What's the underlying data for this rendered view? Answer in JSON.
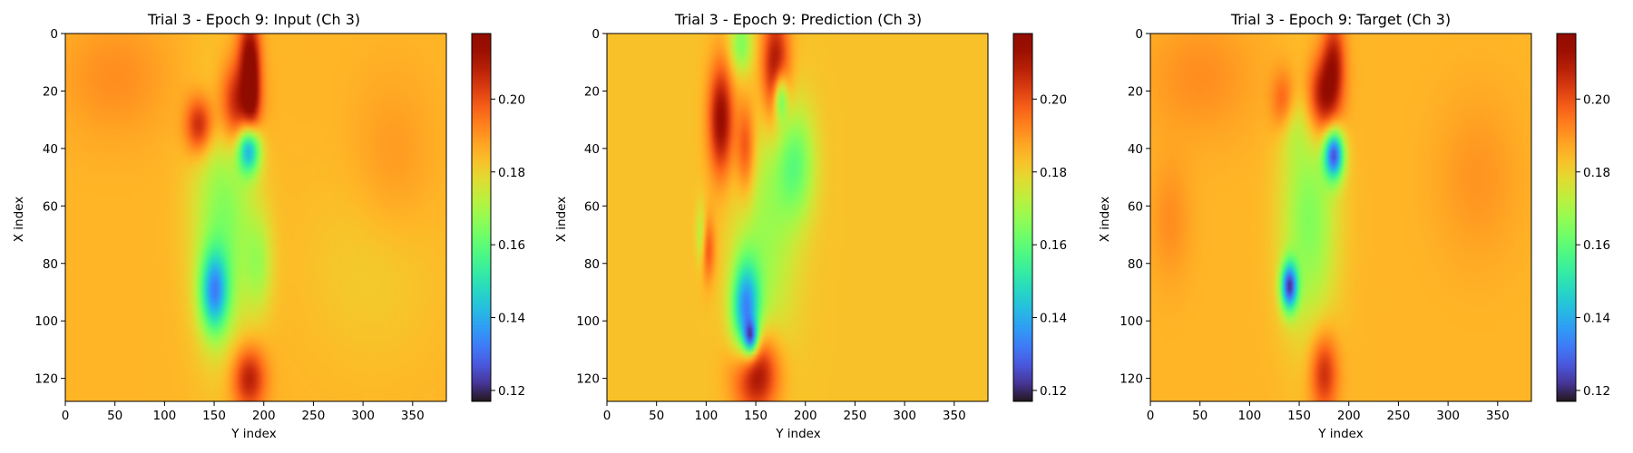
{
  "colormap": "turbo",
  "chart_data": [
    {
      "type": "heatmap",
      "title": "Trial 3 - Epoch 9: Input (Ch 3)",
      "xlabel": "Y index",
      "ylabel": "X index",
      "xlim": [
        0,
        384
      ],
      "ylim": [
        128,
        0
      ],
      "xticks": [
        0,
        50,
        100,
        150,
        200,
        250,
        300,
        350
      ],
      "yticks": [
        0,
        20,
        40,
        60,
        80,
        100,
        120
      ],
      "colorbar": {
        "range": [
          0.117,
          0.218
        ],
        "ticks": [
          0.12,
          0.14,
          0.16,
          0.18,
          0.2
        ],
        "tick_labels": [
          "0.12",
          "0.14",
          "0.16",
          "0.18",
          "0.20"
        ]
      },
      "background": 0.185,
      "features": [
        {
          "x": 175,
          "y": 25,
          "sx": 14,
          "sy": 11,
          "a": 0.03
        },
        {
          "x": 135,
          "y": 32,
          "sx": 10,
          "sy": 7,
          "a": 0.025
        },
        {
          "x": 185,
          "y": 5,
          "sx": 8,
          "sy": 9,
          "a": 0.02
        },
        {
          "x": 188,
          "y": 20,
          "sx": 6,
          "sy": 12,
          "a": 0.02
        },
        {
          "x": 185,
          "y": 120,
          "sx": 12,
          "sy": 8,
          "a": 0.025
        },
        {
          "x": 185,
          "y": 40,
          "sx": 8,
          "sy": 6,
          "a": -0.048
        },
        {
          "x": 150,
          "y": 90,
          "sx": 10,
          "sy": 10,
          "a": -0.04
        },
        {
          "x": 160,
          "y": 65,
          "sx": 22,
          "sy": 30,
          "a": -0.02
        },
        {
          "x": 195,
          "y": 80,
          "sx": 10,
          "sy": 12,
          "a": -0.012
        },
        {
          "x": 50,
          "y": 15,
          "sx": 40,
          "sy": 15,
          "a": 0.006
        },
        {
          "x": 330,
          "y": 45,
          "sx": 30,
          "sy": 20,
          "a": 0.005
        },
        {
          "x": 310,
          "y": 80,
          "sx": 50,
          "sy": 25,
          "a": -0.004
        }
      ]
    },
    {
      "type": "heatmap",
      "title": "Trial 3 - Epoch 9: Prediction (Ch 3)",
      "xlabel": "Y index",
      "ylabel": "X index",
      "xlim": [
        0,
        384
      ],
      "ylim": [
        128,
        0
      ],
      "xticks": [
        0,
        50,
        100,
        150,
        200,
        250,
        300,
        350
      ],
      "yticks": [
        0,
        20,
        40,
        60,
        80,
        100,
        120
      ],
      "colorbar": {
        "range": [
          0.117,
          0.218
        ],
        "ticks": [
          0.12,
          0.14,
          0.16,
          0.18,
          0.2
        ],
        "tick_labels": [
          "0.12",
          "0.14",
          "0.16",
          "0.18",
          "0.20"
        ]
      },
      "background": 0.183,
      "features": [
        {
          "x": 170,
          "y": 12,
          "sx": 10,
          "sy": 14,
          "a": 0.03
        },
        {
          "x": 115,
          "y": 30,
          "sx": 9,
          "sy": 14,
          "a": 0.032
        },
        {
          "x": 140,
          "y": 40,
          "sx": 7,
          "sy": 12,
          "a": 0.02
        },
        {
          "x": 150,
          "y": 118,
          "sx": 16,
          "sy": 10,
          "a": 0.034
        },
        {
          "x": 100,
          "y": 75,
          "sx": 6,
          "sy": 8,
          "a": 0.02
        },
        {
          "x": 140,
          "y": 96,
          "sx": 10,
          "sy": 12,
          "a": -0.045
        },
        {
          "x": 145,
          "y": 106,
          "sx": 5,
          "sy": 4,
          "a": -0.04
        },
        {
          "x": 135,
          "y": 4,
          "sx": 8,
          "sy": 7,
          "a": -0.018
        },
        {
          "x": 175,
          "y": 22,
          "sx": 5,
          "sy": 6,
          "a": -0.03
        },
        {
          "x": 190,
          "y": 45,
          "sx": 14,
          "sy": 14,
          "a": -0.02
        },
        {
          "x": 160,
          "y": 70,
          "sx": 22,
          "sy": 30,
          "a": -0.014
        },
        {
          "x": 95,
          "y": 72,
          "sx": 4,
          "sy": 8,
          "a": -0.02
        }
      ]
    },
    {
      "type": "heatmap",
      "title": "Trial 3 - Epoch 9: Target (Ch 3)",
      "xlabel": "Y index",
      "ylabel": "X index",
      "xlim": [
        0,
        384
      ],
      "ylim": [
        128,
        0
      ],
      "xticks": [
        0,
        50,
        100,
        150,
        200,
        250,
        300,
        350
      ],
      "yticks": [
        0,
        20,
        40,
        60,
        80,
        100,
        120
      ],
      "colorbar": {
        "range": [
          0.117,
          0.218
        ],
        "ticks": [
          0.12,
          0.14,
          0.16,
          0.18,
          0.2
        ],
        "tick_labels": [
          "0.12",
          "0.14",
          "0.16",
          "0.18",
          "0.20"
        ]
      },
      "background": 0.185,
      "features": [
        {
          "x": 175,
          "y": 22,
          "sx": 12,
          "sy": 10,
          "a": 0.03
        },
        {
          "x": 135,
          "y": 25,
          "sx": 9,
          "sy": 8,
          "a": 0.02
        },
        {
          "x": 185,
          "y": 8,
          "sx": 8,
          "sy": 10,
          "a": 0.02
        },
        {
          "x": 175,
          "y": 118,
          "sx": 10,
          "sy": 10,
          "a": 0.022
        },
        {
          "x": 185,
          "y": 42,
          "sx": 7,
          "sy": 6,
          "a": -0.055
        },
        {
          "x": 140,
          "y": 88,
          "sx": 6,
          "sy": 6,
          "a": -0.055
        },
        {
          "x": 160,
          "y": 65,
          "sx": 20,
          "sy": 28,
          "a": -0.02
        },
        {
          "x": 140,
          "y": 30,
          "sx": 10,
          "sy": 8,
          "a": -0.012
        },
        {
          "x": 50,
          "y": 15,
          "sx": 40,
          "sy": 15,
          "a": 0.006
        },
        {
          "x": 330,
          "y": 50,
          "sx": 30,
          "sy": 20,
          "a": 0.005
        },
        {
          "x": 20,
          "y": 65,
          "sx": 15,
          "sy": 15,
          "a": 0.006
        }
      ]
    }
  ]
}
